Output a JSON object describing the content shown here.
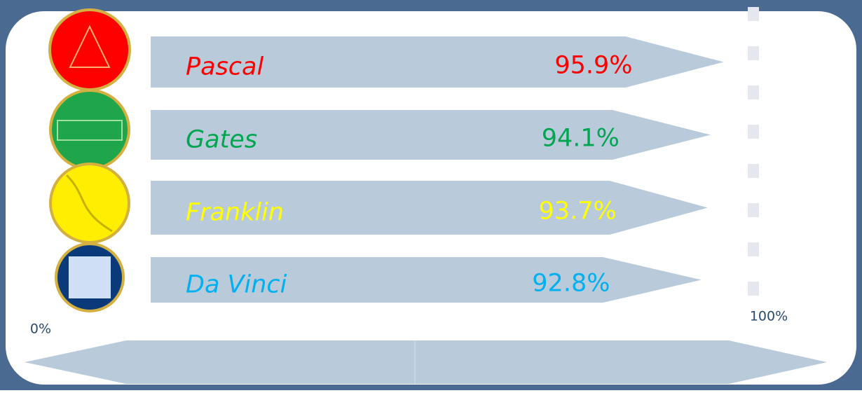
{
  "chart_data": {
    "type": "bar",
    "orientation": "horizontal",
    "categories": [
      "Pascal",
      "Gates",
      "Franklin",
      "Da Vinci"
    ],
    "values": [
      95.9,
      94.1,
      93.7,
      92.8
    ],
    "value_labels": [
      "95.9%",
      "94.1%",
      "93.7%",
      "92.8%"
    ],
    "colors": [
      "#ff0000",
      "#00a650",
      "#ffff00",
      "#00b0f0"
    ],
    "bar_color": "#b9cada",
    "xlim": [
      0,
      100
    ],
    "xticks": [
      {
        "value": 0,
        "label": "0%"
      },
      {
        "value": 100,
        "label": "100%"
      }
    ]
  }
}
